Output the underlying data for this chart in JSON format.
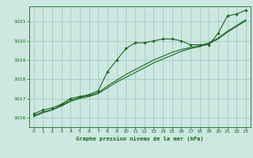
{
  "title": "Graphe pression niveau de la mer (hPa)",
  "background_color": "#cce8e0",
  "grid_color": "#aacccc",
  "line_color": "#1a6620",
  "text_color": "#1a6620",
  "xlim": [
    -0.5,
    23.5
  ],
  "ylim": [
    1015.5,
    1021.8
  ],
  "yticks": [
    1016,
    1017,
    1018,
    1019,
    1020,
    1021
  ],
  "xticks": [
    0,
    1,
    2,
    3,
    4,
    5,
    6,
    7,
    8,
    9,
    10,
    11,
    12,
    13,
    14,
    15,
    16,
    17,
    18,
    19,
    20,
    21,
    22,
    23
  ],
  "series1_x": [
    0,
    1,
    2,
    3,
    4,
    5,
    6,
    7,
    8,
    9,
    10,
    11,
    12,
    13,
    14,
    15,
    16,
    17,
    18,
    19,
    20,
    21,
    22,
    23
  ],
  "series1_y": [
    1016.2,
    1016.4,
    1016.5,
    1016.7,
    1017.0,
    1017.1,
    1017.2,
    1017.4,
    1018.4,
    1019.0,
    1019.6,
    1019.9,
    1019.9,
    1020.0,
    1020.1,
    1020.1,
    1020.0,
    1019.8,
    1019.8,
    1019.8,
    1020.4,
    1021.3,
    1021.4,
    1021.6
  ],
  "series2_x": [
    0,
    1,
    2,
    3,
    4,
    5,
    6,
    7,
    8,
    9,
    10,
    11,
    12,
    13,
    14,
    15,
    16,
    17,
    18,
    19,
    20,
    21,
    22,
    23
  ],
  "series2_y": [
    1016.1,
    1016.3,
    1016.4,
    1016.65,
    1016.9,
    1017.05,
    1017.15,
    1017.3,
    1017.65,
    1017.95,
    1018.25,
    1018.5,
    1018.75,
    1019.0,
    1019.2,
    1019.4,
    1019.55,
    1019.65,
    1019.75,
    1019.9,
    1020.15,
    1020.5,
    1020.8,
    1021.1
  ],
  "series3_x": [
    0,
    1,
    2,
    3,
    4,
    5,
    6,
    7,
    8,
    9,
    10,
    11,
    12,
    13,
    14,
    15,
    16,
    17,
    18,
    19,
    20,
    21,
    22,
    23
  ],
  "series3_y": [
    1016.05,
    1016.25,
    1016.4,
    1016.6,
    1016.85,
    1017.0,
    1017.1,
    1017.25,
    1017.55,
    1017.85,
    1018.1,
    1018.35,
    1018.6,
    1018.85,
    1019.05,
    1019.25,
    1019.45,
    1019.6,
    1019.7,
    1019.85,
    1020.1,
    1020.45,
    1020.75,
    1021.05
  ]
}
